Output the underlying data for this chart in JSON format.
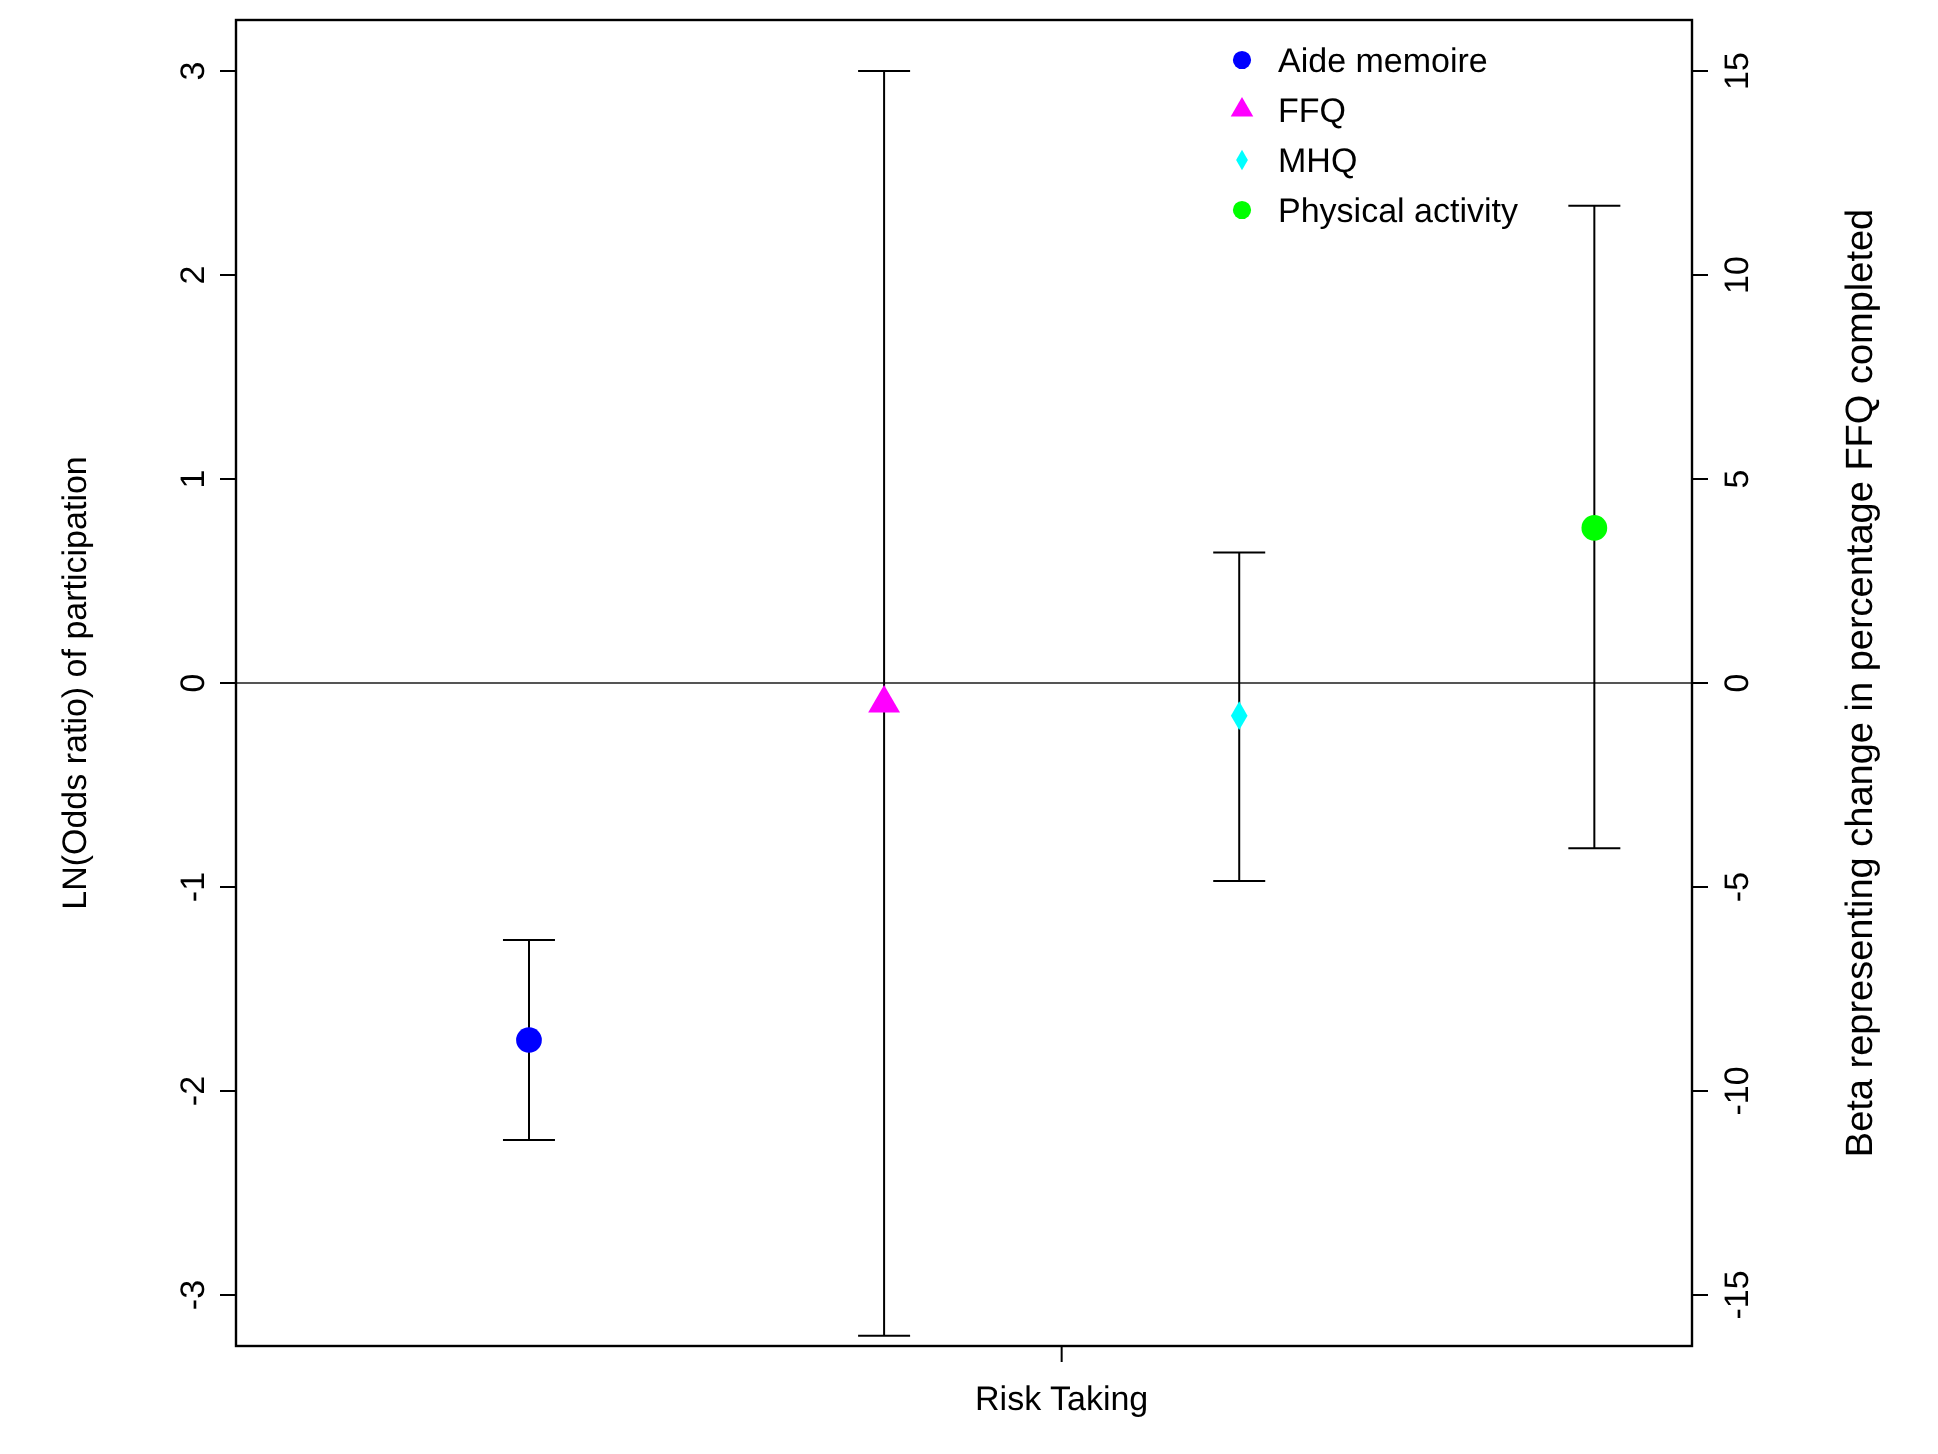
{
  "chart_data": {
    "type": "scatter",
    "xlabel": null,
    "ylabel": "LN(Odds ratio) of participation",
    "y2label": "Beta representing change in percentage FFQ completed",
    "categories": [
      null,
      null,
      null,
      null
    ],
    "annotations": [
      "Risk Taking"
    ],
    "ylim": [
      -3.25,
      3.25
    ],
    "yticks": [
      -3,
      -2,
      -1,
      0,
      1,
      2,
      3
    ],
    "y2lim": [
      -16.25,
      16.25
    ],
    "y2ticks": [
      -15,
      -10,
      -5,
      0,
      5,
      10,
      15
    ],
    "grid": false,
    "legend": "top right",
    "ref_lines": [
      {
        "axis": "y",
        "value": 0,
        "color": "#555555"
      }
    ],
    "series": [
      {
        "name": "Aide memoire",
        "color": "#0000ff",
        "marker": "circle",
        "values": [
          -1.75,
          null,
          null,
          null
        ],
        "errors": [
          [
            -2.24,
            -1.26
          ],
          null,
          null,
          null
        ]
      },
      {
        "name": "FFQ",
        "color": "#ff00ff",
        "marker": "triangle",
        "axis": "y2",
        "values": [
          null,
          -0.5,
          null,
          null
        ],
        "errors": [
          null,
          [
            -16.0,
            15.0
          ],
          null,
          null
        ]
      },
      {
        "name": "MHQ",
        "color": "#00ffff",
        "marker": "diamond",
        "values": [
          null,
          null,
          -0.16,
          null
        ],
        "errors": [
          null,
          null,
          [
            -0.97,
            0.64
          ],
          null
        ]
      },
      {
        "name": "Physical activity",
        "color": "#00ff00",
        "marker": "circle",
        "values": [
          null,
          null,
          null,
          0.76
        ],
        "errors": [
          null,
          null,
          null,
          [
            -0.81,
            2.34
          ]
        ]
      }
    ]
  }
}
